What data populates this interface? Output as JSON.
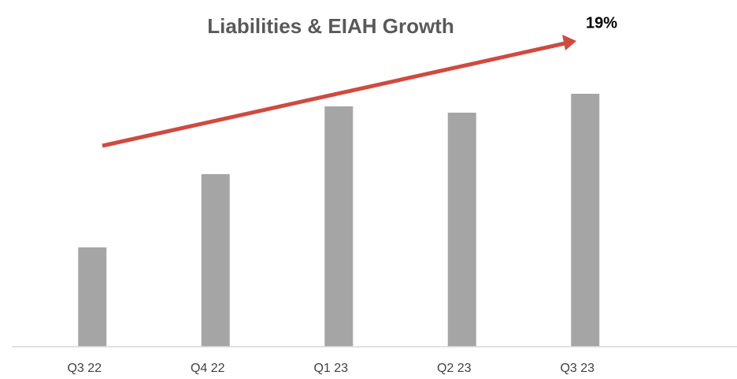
{
  "chart_data": {
    "type": "bar",
    "title": "Liabilities & EIAH Growth",
    "annotation": "19%",
    "categories": [
      "Q3 22",
      "Q4 22",
      "Q1 23",
      "Q2 23",
      "Q3 23"
    ],
    "values": [
      126,
      219,
      305,
      297,
      321
    ],
    "color": "#a5a5a5",
    "ylim": [
      0,
      350
    ]
  }
}
